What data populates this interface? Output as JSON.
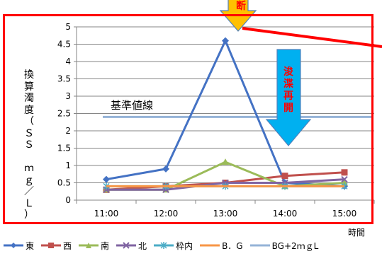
{
  "chart_data": {
    "type": "line",
    "categories": [
      "11:00",
      "12:00",
      "13:00",
      "14:00",
      "15:00"
    ],
    "series": [
      {
        "name": "東",
        "color": "#4472c4",
        "marker": "diamond",
        "values": [
          0.6,
          0.9,
          4.6,
          0.5,
          0.4
        ]
      },
      {
        "name": "西",
        "color": "#c0504d",
        "marker": "square",
        "values": [
          0.3,
          0.4,
          0.5,
          0.7,
          0.8
        ]
      },
      {
        "name": "南",
        "color": "#9bbb59",
        "marker": "triangle",
        "values": [
          0.3,
          0.3,
          1.1,
          0.4,
          0.5
        ]
      },
      {
        "name": "北",
        "color": "#8064a2",
        "marker": "x",
        "values": [
          0.3,
          0.3,
          0.5,
          0.5,
          0.6
        ]
      },
      {
        "name": "枠内",
        "color": "#4bacc6",
        "marker": "star",
        "values": [
          0.4,
          0.4,
          0.4,
          0.4,
          0.4
        ]
      },
      {
        "name": "B．G",
        "color": "#f79646",
        "marker": "none",
        "values": [
          0.4,
          0.4,
          0.4,
          0.4,
          0.4
        ]
      },
      {
        "name": "BG+2ｍｇL",
        "color": "#95b3d7",
        "marker": "none",
        "values": [
          2.4,
          2.4,
          2.4,
          2.4,
          2.4
        ],
        "width": 3,
        "extended": true
      }
    ],
    "ylim": [
      0,
      5
    ],
    "yticks": [
      "0",
      "0.5",
      "1",
      "1.5",
      "2",
      "2.5",
      "3",
      "3.5",
      "4",
      "4.5",
      "5"
    ],
    "ylabel_chars": [
      "換",
      "算",
      "濁",
      "度",
      "（",
      "Ｓ",
      "Ｓ",
      "",
      "ｍ",
      "ｇ",
      "／",
      "Ｌ",
      "）"
    ],
    "xlabel": "時間",
    "grid": "horizontal",
    "legend_position": "bottom",
    "annotations": {
      "reference_line_label": "基準値線",
      "stop_arrow_text": "断",
      "resume_arrow_chars": [
        "浚",
        "渫",
        "再",
        "開"
      ]
    },
    "colors": {
      "frame": "#ff0000",
      "callout_line": "#ff0000",
      "stop_arrow": "#ffc000",
      "resume_arrow": "#00b0f0",
      "arrow_text": "#ff0000",
      "gridline": "#868686"
    }
  }
}
